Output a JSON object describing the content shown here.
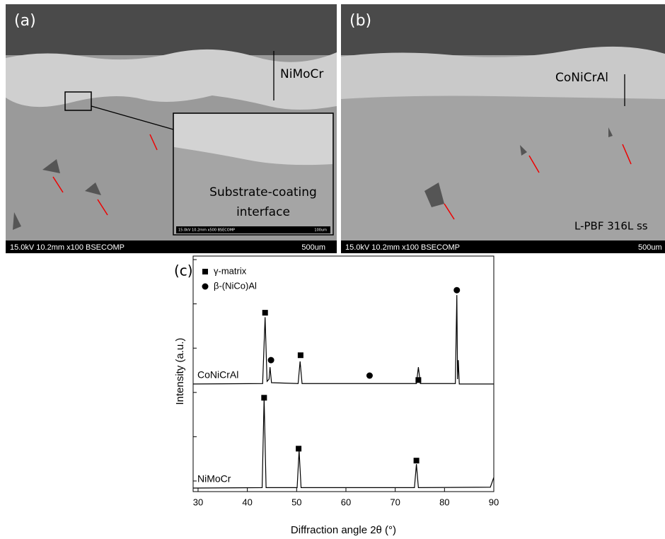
{
  "panels": {
    "a": {
      "label": "(a)",
      "coating": "NiMoCr",
      "inset_text": [
        "Substrate-coating",
        "interface"
      ],
      "inset_info": "15.0kV 10.2mm x500 BSECOMP",
      "inset_scale": "100um",
      "info": "15.0kV 10.2mm x100 BSECOMP",
      "scale": "500um"
    },
    "b": {
      "label": "(b)",
      "coating": "CoNiCrAl",
      "substrate": "L-PBF 316L ss",
      "info": "15.0kV 10.2mm x100 BSECOMP",
      "scale": "500um"
    },
    "c": {
      "label": "(c)"
    }
  },
  "chart_data": {
    "type": "line",
    "xlabel": "Diffraction angle 2θ (°)",
    "ylabel": "Intensity (a.u.)",
    "xlim": [
      29,
      90
    ],
    "xticks": [
      30,
      40,
      50,
      60,
      70,
      80,
      90
    ],
    "ylim": [
      -0.24,
      5.08
    ],
    "yticks": [
      0,
      1,
      2,
      3,
      4,
      5
    ],
    "phases": [
      {
        "name": "γ-matrix",
        "marker": "square"
      },
      {
        "name": "β-(NiCo)Al",
        "marker": "circle"
      }
    ],
    "series": [
      {
        "name": "CoNiCrAl",
        "color": "#000000",
        "x": [
          29,
          43.1,
          43.6,
          44.0,
          44.4,
          44.6,
          44.9,
          50.3,
          50.7,
          51.1,
          74.3,
          74.7,
          75.1,
          82.2,
          82.5,
          82.65,
          82.8,
          83.0,
          90
        ],
        "values": [
          2.19,
          2.2,
          3.7,
          2.25,
          2.3,
          2.57,
          2.22,
          2.2,
          2.7,
          2.2,
          2.2,
          2.57,
          2.2,
          2.2,
          4.2,
          2.3,
          2.73,
          2.19,
          2.19
        ]
      },
      {
        "name": "NiMoCr",
        "color": "#000000",
        "x": [
          29,
          43.0,
          43.4,
          43.8,
          50.1,
          50.5,
          50.9,
          73.9,
          74.3,
          74.7,
          89.3,
          90
        ],
        "values": [
          -0.16,
          -0.15,
          1.87,
          -0.15,
          -0.15,
          0.69,
          -0.15,
          -0.15,
          0.38,
          -0.15,
          -0.14,
          0.08
        ]
      }
    ],
    "peak_marks": [
      {
        "x": 43.6,
        "y": 3.8,
        "phase": 0
      },
      {
        "x": 50.8,
        "y": 2.84,
        "phase": 0
      },
      {
        "x": 74.7,
        "y": 2.28,
        "phase": 0
      },
      {
        "x": 44.8,
        "y": 2.73,
        "phase": 1
      },
      {
        "x": 64.8,
        "y": 2.38,
        "phase": 1
      },
      {
        "x": 82.5,
        "y": 4.31,
        "phase": 1
      },
      {
        "x": 43.4,
        "y": 1.88,
        "phase": 0
      },
      {
        "x": 50.4,
        "y": 0.73,
        "phase": 0
      },
      {
        "x": 74.3,
        "y": 0.46,
        "phase": 0
      }
    ]
  }
}
